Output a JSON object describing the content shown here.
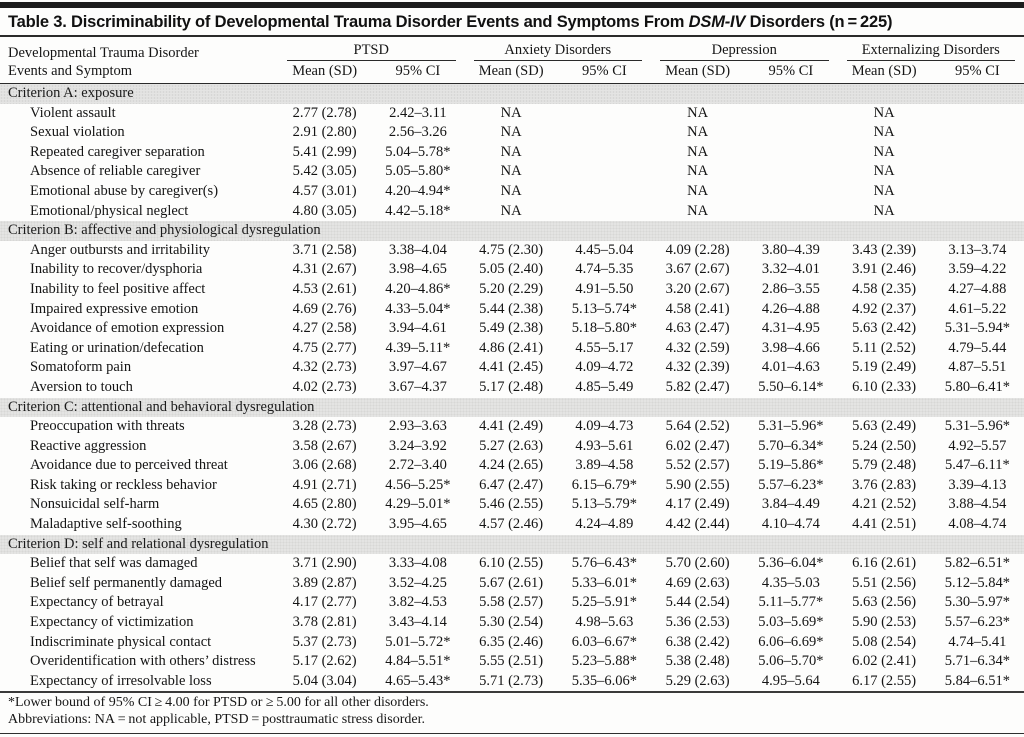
{
  "title": {
    "prefix": "Table 3. Discriminability of Developmental Trauma Disorder Events and Symptoms From ",
    "italic": "DSM-IV",
    "suffix": " Disorders (n = 225)"
  },
  "header": {
    "stub_line1": "Developmental Trauma Disorder",
    "stub_line2": "Events and Symptom",
    "groups": [
      "PTSD",
      "Anxiety Disorders",
      "Depression",
      "Externalizing Disorders"
    ],
    "subheaders": [
      "Mean (SD)",
      "95% CI"
    ]
  },
  "sections": [
    {
      "heading": "Criterion A: exposure",
      "rows": [
        {
          "label": "Violent assault",
          "cells": [
            "2.77 (2.78)",
            "2.42–3.11",
            "NA",
            "",
            "NA",
            "",
            "NA",
            ""
          ]
        },
        {
          "label": "Sexual violation",
          "cells": [
            "2.91 (2.80)",
            "2.56–3.26",
            "NA",
            "",
            "NA",
            "",
            "NA",
            ""
          ]
        },
        {
          "label": "Repeated caregiver separation",
          "cells": [
            "5.41 (2.99)",
            "5.04–5.78*",
            "NA",
            "",
            "NA",
            "",
            "NA",
            ""
          ]
        },
        {
          "label": "Absence of reliable caregiver",
          "cells": [
            "5.42 (3.05)",
            "5.05–5.80*",
            "NA",
            "",
            "NA",
            "",
            "NA",
            ""
          ]
        },
        {
          "label": "Emotional abuse by caregiver(s)",
          "cells": [
            "4.57 (3.01)",
            "4.20–4.94*",
            "NA",
            "",
            "NA",
            "",
            "NA",
            ""
          ]
        },
        {
          "label": "Emotional/physical neglect",
          "cells": [
            "4.80 (3.05)",
            "4.42–5.18*",
            "NA",
            "",
            "NA",
            "",
            "NA",
            ""
          ]
        }
      ]
    },
    {
      "heading": "Criterion B: affective and physiological dysregulation",
      "rows": [
        {
          "label": "Anger outbursts and irritability",
          "cells": [
            "3.71 (2.58)",
            "3.38–4.04",
            "4.75 (2.30)",
            "4.45–5.04",
            "4.09 (2.28)",
            "3.80–4.39",
            "3.43 (2.39)",
            "3.13–3.74"
          ]
        },
        {
          "label": "Inability to recover/dysphoria",
          "cells": [
            "4.31 (2.67)",
            "3.98–4.65",
            "5.05 (2.40)",
            "4.74–5.35",
            "3.67 (2.67)",
            "3.32–4.01",
            "3.91 (2.46)",
            "3.59–4.22"
          ]
        },
        {
          "label": "Inability to feel positive affect",
          "cells": [
            "4.53 (2.61)",
            "4.20–4.86*",
            "5.20 (2.29)",
            "4.91–5.50",
            "3.20 (2.67)",
            "2.86–3.55",
            "4.58 (2.35)",
            "4.27–4.88"
          ]
        },
        {
          "label": "Impaired expressive emotion",
          "cells": [
            "4.69 (2.76)",
            "4.33–5.04*",
            "5.44 (2.38)",
            "5.13–5.74*",
            "4.58 (2.41)",
            "4.26–4.88",
            "4.92 (2.37)",
            "4.61–5.22"
          ]
        },
        {
          "label": "Avoidance of emotion expression",
          "cells": [
            "4.27 (2.58)",
            "3.94–4.61",
            "5.49 (2.38)",
            "5.18–5.80*",
            "4.63 (2.47)",
            "4.31–4.95",
            "5.63 (2.42)",
            "5.31–5.94*"
          ]
        },
        {
          "label": "Eating or urination/defecation",
          "cells": [
            "4.75 (2.77)",
            "4.39–5.11*",
            "4.86 (2.41)",
            "4.55–5.17",
            "4.32 (2.59)",
            "3.98–4.66",
            "5.11 (2.52)",
            "4.79–5.44"
          ]
        },
        {
          "label": "Somatoform pain",
          "cells": [
            "4.32 (2.73)",
            "3.97–4.67",
            "4.41 (2.45)",
            "4.09–4.72",
            "4.32 (2.39)",
            "4.01–4.63",
            "5.19 (2.49)",
            "4.87–5.51"
          ]
        },
        {
          "label": "Aversion to touch",
          "cells": [
            "4.02 (2.73)",
            "3.67–4.37",
            "5.17 (2.48)",
            "4.85–5.49",
            "5.82 (2.47)",
            "5.50–6.14*",
            "6.10 (2.33)",
            "5.80–6.41*"
          ]
        }
      ]
    },
    {
      "heading": "Criterion C: attentional and behavioral dysregulation",
      "rows": [
        {
          "label": "Preoccupation with threats",
          "cells": [
            "3.28 (2.73)",
            "2.93–3.63",
            "4.41 (2.49)",
            "4.09–4.73",
            "5.64 (2.52)",
            "5.31–5.96*",
            "5.63 (2.49)",
            "5.31–5.96*"
          ]
        },
        {
          "label": "Reactive aggression",
          "cells": [
            "3.58 (2.67)",
            "3.24–3.92",
            "5.27 (2.63)",
            "4.93–5.61",
            "6.02 (2.47)",
            "5.70–6.34*",
            "5.24 (2.50)",
            "4.92–5.57"
          ]
        },
        {
          "label": "Avoidance due to perceived threat",
          "cells": [
            "3.06 (2.68)",
            "2.72–3.40",
            "4.24 (2.65)",
            "3.89–4.58",
            "5.52 (2.57)",
            "5.19–5.86*",
            "5.79 (2.48)",
            "5.47–6.11*"
          ]
        },
        {
          "label": "Risk taking or reckless behavior",
          "cells": [
            "4.91 (2.71)",
            "4.56–5.25*",
            "6.47 (2.47)",
            "6.15–6.79*",
            "5.90 (2.55)",
            "5.57–6.23*",
            "3.76 (2.83)",
            "3.39–4.13"
          ]
        },
        {
          "label": "Nonsuicidal self-harm",
          "cells": [
            "4.65 (2.80)",
            "4.29–5.01*",
            "5.46 (2.55)",
            "5.13–5.79*",
            "4.17 (2.49)",
            "3.84–4.49",
            "4.21 (2.52)",
            "3.88–4.54"
          ]
        },
        {
          "label": "Maladaptive self-soothing",
          "cells": [
            "4.30 (2.72)",
            "3.95–4.65",
            "4.57 (2.46)",
            "4.24–4.89",
            "4.42 (2.44)",
            "4.10–4.74",
            "4.41 (2.51)",
            "4.08–4.74"
          ]
        }
      ]
    },
    {
      "heading": "Criterion D: self and relational dysregulation",
      "rows": [
        {
          "label": "Belief that self was damaged",
          "cells": [
            "3.71 (2.90)",
            "3.33–4.08",
            "6.10 (2.55)",
            "5.76–6.43*",
            "5.70 (2.60)",
            "5.36–6.04*",
            "6.16 (2.61)",
            "5.82–6.51*"
          ]
        },
        {
          "label": "Belief self permanently damaged",
          "cells": [
            "3.89 (2.87)",
            "3.52–4.25",
            "5.67 (2.61)",
            "5.33–6.01*",
            "4.69 (2.63)",
            "4.35–5.03",
            "5.51 (2.56)",
            "5.12–5.84*"
          ]
        },
        {
          "label": "Expectancy of betrayal",
          "cells": [
            "4.17 (2.77)",
            "3.82–4.53",
            "5.58 (2.57)",
            "5.25–5.91*",
            "5.44 (2.54)",
            "5.11–5.77*",
            "5.63 (2.56)",
            "5.30–5.97*"
          ]
        },
        {
          "label": "Expectancy of victimization",
          "cells": [
            "3.78 (2.81)",
            "3.43–4.14",
            "5.30 (2.54)",
            "4.98–5.63",
            "5.36 (2.53)",
            "5.03–5.69*",
            "5.90 (2.53)",
            "5.57–6.23*"
          ]
        },
        {
          "label": "Indiscriminate physical contact",
          "cells": [
            "5.37 (2.73)",
            "5.01–5.72*",
            "6.35 (2.46)",
            "6.03–6.67*",
            "6.38 (2.42)",
            "6.06–6.69*",
            "5.08 (2.54)",
            "4.74–5.41"
          ]
        },
        {
          "label": "Overidentification with others’ distress",
          "cells": [
            "5.17 (2.62)",
            "4.84–5.51*",
            "5.55 (2.51)",
            "5.23–5.88*",
            "5.38 (2.48)",
            "5.06–5.70*",
            "6.02 (2.41)",
            "5.71–6.34*"
          ]
        },
        {
          "label": "Expectancy of irresolvable loss",
          "cells": [
            "5.04 (3.04)",
            "4.65–5.43*",
            "5.71 (2.73)",
            "5.35–6.06*",
            "5.29 (2.63)",
            "4.95–5.64",
            "6.17 (2.55)",
            "5.84–6.51*"
          ]
        }
      ]
    }
  ],
  "footnotes": [
    "*Lower bound of 95% CI ≥ 4.00 for PTSD or ≥ 5.00 for all other disorders.",
    "Abbreviations: NA = not applicable, PTSD = posttraumatic stress disorder."
  ]
}
